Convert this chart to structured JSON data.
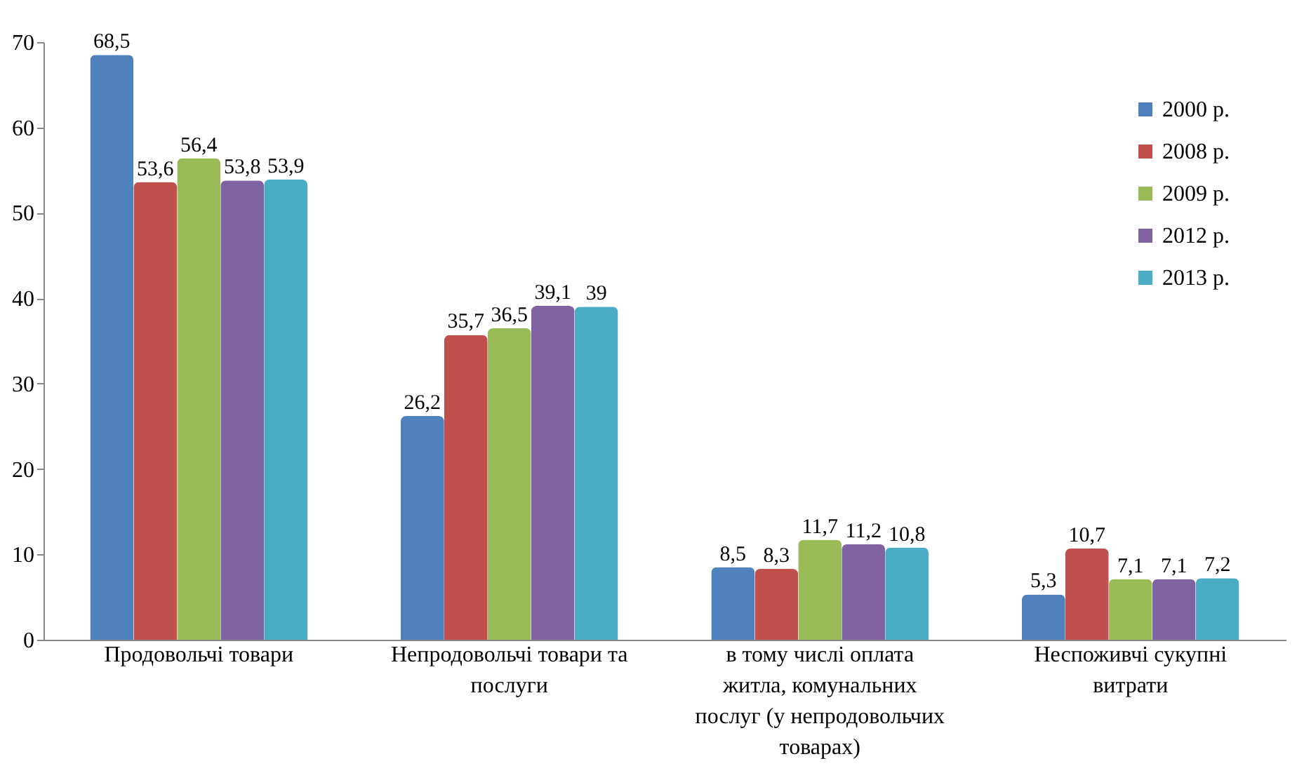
{
  "chart_data": {
    "type": "bar",
    "categories": [
      "Продовольчі товари",
      "Непродовольчі товари та послуги",
      "в тому числі оплата житла, комунальних послуг (у непродовольчих товарах)",
      "Неспоживчі сукупні витрати"
    ],
    "series": [
      {
        "name": "2000 р.",
        "color": "#4f81bd",
        "values": [
          68.5,
          26.2,
          8.5,
          5.3
        ],
        "value_labels": [
          "68,5",
          "26,2",
          "8,5",
          "5,3"
        ]
      },
      {
        "name": "2008 р.",
        "color": "#c0504d",
        "values": [
          53.6,
          35.7,
          8.3,
          10.7
        ],
        "value_labels": [
          "53,6",
          "35,7",
          "8,3",
          "10,7"
        ]
      },
      {
        "name": "2009 р.",
        "color": "#9bbb59",
        "values": [
          56.4,
          36.5,
          11.7,
          7.1
        ],
        "value_labels": [
          "56,4",
          "36,5",
          "11,7",
          "7,1"
        ]
      },
      {
        "name": "2012 р.",
        "color": "#8064a2",
        "values": [
          53.8,
          39.1,
          11.2,
          7.1
        ],
        "value_labels": [
          "53,8",
          "39,1",
          "11,2",
          "7,1"
        ]
      },
      {
        "name": "2013 р.",
        "color": "#4bacc6",
        "values": [
          53.9,
          39,
          10.8,
          7.2
        ],
        "value_labels": [
          "53,9",
          "39",
          "10,8",
          "7,2"
        ]
      }
    ],
    "ylim": [
      0,
      70
    ],
    "yticks": [
      0,
      10,
      20,
      30,
      40,
      50,
      60,
      70
    ],
    "grid": false,
    "legend": "top right"
  }
}
